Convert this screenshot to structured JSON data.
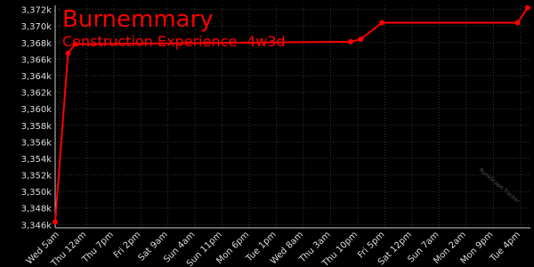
{
  "chart_data": {
    "type": "line",
    "title": "Burnemmary",
    "subtitle": "Construction Experience -4w3d",
    "watermark": "RuneScape Tracker",
    "background": "#000000",
    "grid": true,
    "xlim": [
      -3,
      330
    ],
    "xticks": [
      {
        "value": 0,
        "label": "Wed 5am"
      },
      {
        "value": 19,
        "label": "Thu 12am"
      },
      {
        "value": 38,
        "label": "Thu 7pm"
      },
      {
        "value": 57,
        "label": "Fri 2pm"
      },
      {
        "value": 76,
        "label": "Sat 9am"
      },
      {
        "value": 95,
        "label": "Sun 4am"
      },
      {
        "value": 114,
        "label": "Sun 11pm"
      },
      {
        "value": 133,
        "label": "Mon 6pm"
      },
      {
        "value": 152,
        "label": "Tue 1pm"
      },
      {
        "value": 171,
        "label": "Wed 8am"
      },
      {
        "value": 190,
        "label": "Thu 3am"
      },
      {
        "value": 209,
        "label": "Thu 10pm"
      },
      {
        "value": 228,
        "label": "Fri 5pm"
      },
      {
        "value": 247,
        "label": "Sat 12pm"
      },
      {
        "value": 266,
        "label": "Sun 7am"
      },
      {
        "value": 285,
        "label": "Mon 2am"
      },
      {
        "value": 304,
        "label": "Mon 9pm"
      },
      {
        "value": 323,
        "label": "Tue 4pm"
      }
    ],
    "ylim": [
      3345600,
      3372500
    ],
    "yticks": [
      {
        "value": 3346000,
        "label": "3,346k"
      },
      {
        "value": 3348000,
        "label": "3,348k"
      },
      {
        "value": 3350000,
        "label": "3,350k"
      },
      {
        "value": 3352000,
        "label": "3,352k"
      },
      {
        "value": 3354000,
        "label": "3,354k"
      },
      {
        "value": 3356000,
        "label": "3,356k"
      },
      {
        "value": 3358000,
        "label": "3,358k"
      },
      {
        "value": 3360000,
        "label": "3,360k"
      },
      {
        "value": 3362000,
        "label": "3,362k"
      },
      {
        "value": 3364000,
        "label": "3,364k"
      },
      {
        "value": 3366000,
        "label": "3,366k"
      },
      {
        "value": 3368000,
        "label": "3,368k"
      },
      {
        "value": 3370000,
        "label": "3,370k"
      },
      {
        "value": 3372000,
        "label": "3,372k"
      }
    ],
    "series": [
      {
        "color": "#ff0000",
        "x": [
          -3,
          6,
          11,
          204,
          211,
          226,
          321,
          328
        ],
        "values": [
          3346300,
          3366700,
          3367800,
          3368100,
          3368400,
          3370400,
          3370400,
          3372200
        ]
      }
    ]
  }
}
